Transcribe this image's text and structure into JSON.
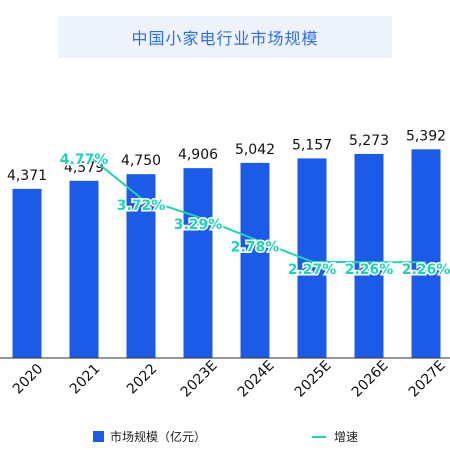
{
  "chart_data": {
    "type": "bar",
    "title": "中国小家电行业市场规模",
    "categories": [
      "2020",
      "2021",
      "2022",
      "2023E",
      "2024E",
      "2025E",
      "2026E",
      "2027E"
    ],
    "series": [
      {
        "name": "市场规模（亿元）",
        "type": "bar",
        "values": [
          4371,
          4579,
          4750,
          4906,
          5042,
          5157,
          5273,
          5392
        ],
        "labels": [
          "4,371",
          "4,579",
          "4,750",
          "4,906",
          "5,042",
          "5,157",
          "5,273",
          "5,392"
        ]
      },
      {
        "name": "增速",
        "type": "line",
        "x": [
          "2021",
          "2022",
          "2023E",
          "2024E",
          "2025E",
          "2026E",
          "2027E"
        ],
        "values": [
          4.77,
          3.72,
          3.29,
          2.78,
          2.27,
          2.26,
          2.26
        ],
        "labels": [
          "4.77%",
          "3.72%",
          "3.29%",
          "2.78%",
          "2.27%",
          "2.26%",
          "2.26%"
        ]
      }
    ],
    "grid": false,
    "legend": "bottom",
    "colors": {
      "bar": "#1c5be8",
      "line": "#21d3b5",
      "title": "#2f6fe3",
      "title_bg": "#eef2fb"
    }
  }
}
